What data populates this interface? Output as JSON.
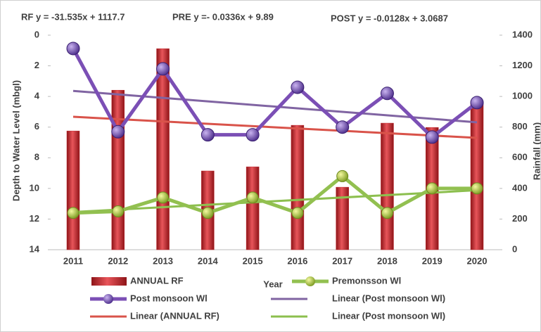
{
  "chart_data": {
    "type": "bar-line",
    "annotations": [
      "RF y = -31.535x + 1117.7",
      "PRE y =- 0.0336x + 9.89",
      "POST y = -0.0128x + 3.0687"
    ],
    "x_label": "Year",
    "y_label": "Depth to Water Level  (mbgl)",
    "y2_label": "Rainfall (mm)",
    "categories": [
      "2011",
      "2012",
      "2013",
      "2014",
      "2015",
      "2016",
      "2017",
      "2018",
      "2019",
      "2020"
    ],
    "series": [
      {
        "name": "ANNUAL RF",
        "type": "bar",
        "axis": "y2",
        "color": "#c0272d",
        "values": [
          775,
          1041,
          1312,
          514,
          541,
          812,
          408,
          826,
          798,
          959
        ],
        "trendline": {
          "name": "Linear (ANNUAL RF)",
          "color": "#d9534a"
        }
      },
      {
        "name": "Premonsson Wl",
        "type": "line",
        "axis": "y",
        "color": "#92c050",
        "values": [
          11.6,
          11.5,
          10.6,
          11.6,
          10.6,
          11.6,
          9.2,
          11.6,
          10.0,
          10.0
        ],
        "trendline": {
          "name": "Linear (Post monsoon Wl)",
          "color": "#8cbf4e"
        }
      },
      {
        "name": "Post monsoon Wl",
        "type": "line",
        "axis": "y",
        "color": "#7b4fb5",
        "values": [
          0.87,
          6.3,
          2.2,
          6.5,
          6.5,
          3.4,
          6.0,
          3.8,
          6.65,
          4.4
        ],
        "trendline": {
          "name": "Linear (Post monsoon Wl)",
          "color": "#8064a2"
        }
      }
    ],
    "ylim": [
      0,
      14
    ],
    "yticks": [
      0,
      2,
      4,
      6,
      8,
      10,
      12,
      14
    ],
    "y_inverted": true,
    "y2lim": [
      0,
      1400
    ],
    "y2ticks": [
      0,
      200,
      400,
      600,
      800,
      1000,
      1200,
      1400
    ],
    "legend": "bottom"
  }
}
